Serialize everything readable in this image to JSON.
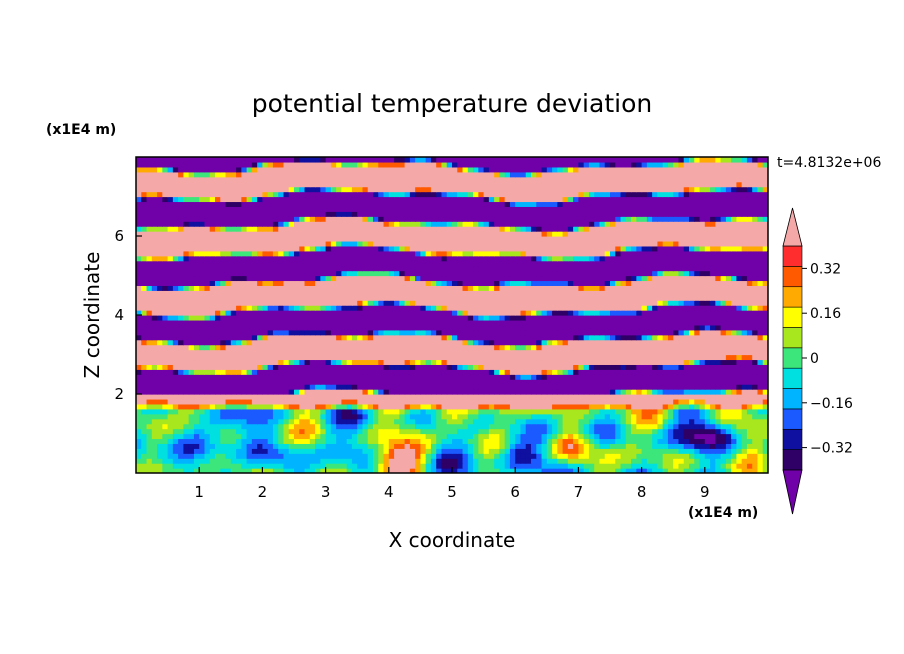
{
  "chart_data": {
    "type": "heatmap",
    "title": "potential temperature deviation",
    "xlabel": "X coordinate",
    "ylabel": "Z coordinate",
    "x_unit": "(x1E4 m)",
    "y_unit": "(x1E4 m)",
    "time_label": "t=4.8132e+06",
    "xlim": [
      0,
      10
    ],
    "ylim": [
      0,
      8
    ],
    "x_ticks": [
      1,
      2,
      3,
      4,
      5,
      6,
      7,
      8,
      9
    ],
    "y_ticks": [
      2,
      4,
      6
    ],
    "colorbar": {
      "levels": [
        -0.4,
        -0.32,
        -0.24,
        -0.16,
        -0.08,
        0,
        0.08,
        0.16,
        0.24,
        0.32,
        0.4
      ],
      "colors": [
        "#2f0066",
        "#0f0fa0",
        "#1a5aff",
        "#00b4ff",
        "#00e0e0",
        "#3ce67a",
        "#a8e61e",
        "#ffff00",
        "#ffaa00",
        "#ff5a00",
        "#ff2d2d"
      ],
      "under_color": "#7000a8",
      "over_color": "#f5a8a8",
      "labels": [
        "0.32",
        "0.16",
        "0",
        "−0.16",
        "−0.32"
      ],
      "label_values": [
        0.32,
        0.16,
        0,
        -0.16,
        -0.32
      ],
      "extend": "both"
    },
    "structure": {
      "upper_layers": "alternating bands of values above 0.40 (pink) and below -0.40 (purple) for z > 2",
      "lower_layer": "turbulent mixed layer for z < 2 with values mostly between -0.40 and 0.40"
    }
  }
}
